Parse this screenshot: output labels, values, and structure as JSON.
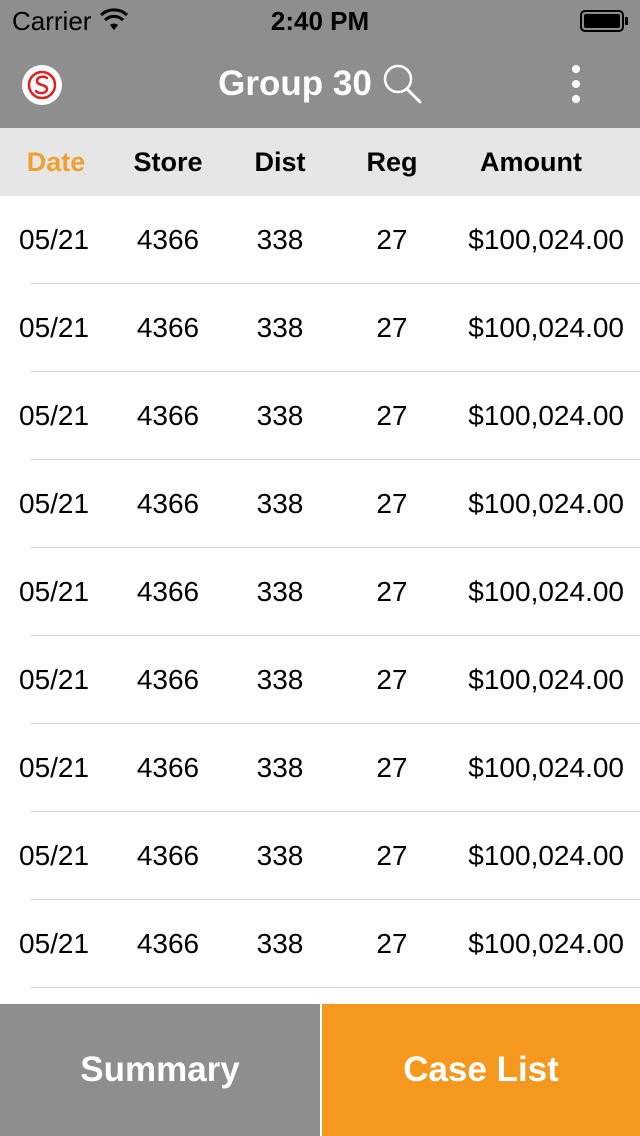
{
  "status_bar": {
    "carrier": "Carrier",
    "time": "2:40 PM"
  },
  "nav": {
    "logo_icon": "dollar-circle-icon",
    "title": "Group 30",
    "search_icon": "search-icon",
    "menu_icon": "more-vertical-icon"
  },
  "table": {
    "headers": [
      "Date",
      "Store",
      "Dist",
      "Reg",
      "Amount"
    ],
    "rows": [
      [
        "05/21",
        "4366",
        "338",
        "27",
        "$100,024.00"
      ],
      [
        "05/21",
        "4366",
        "338",
        "27",
        "$100,024.00"
      ],
      [
        "05/21",
        "4366",
        "338",
        "27",
        "$100,024.00"
      ],
      [
        "05/21",
        "4366",
        "338",
        "27",
        "$100,024.00"
      ],
      [
        "05/21",
        "4366",
        "338",
        "27",
        "$100,024.00"
      ],
      [
        "05/21",
        "4366",
        "338",
        "27",
        "$100,024.00"
      ],
      [
        "05/21",
        "4366",
        "338",
        "27",
        "$100,024.00"
      ],
      [
        "05/21",
        "4366",
        "338",
        "27",
        "$100,024.00"
      ],
      [
        "05/21",
        "4366",
        "338",
        "27",
        "$100,024.00"
      ]
    ]
  },
  "bottom": {
    "summary_label": "Summary",
    "case_list_label": "Case List"
  },
  "colors": {
    "bar_gray": "#8e8e8e",
    "accent_orange": "#f6981e",
    "active_sort": "#f0a030",
    "header_bg": "#e6e6e6"
  }
}
